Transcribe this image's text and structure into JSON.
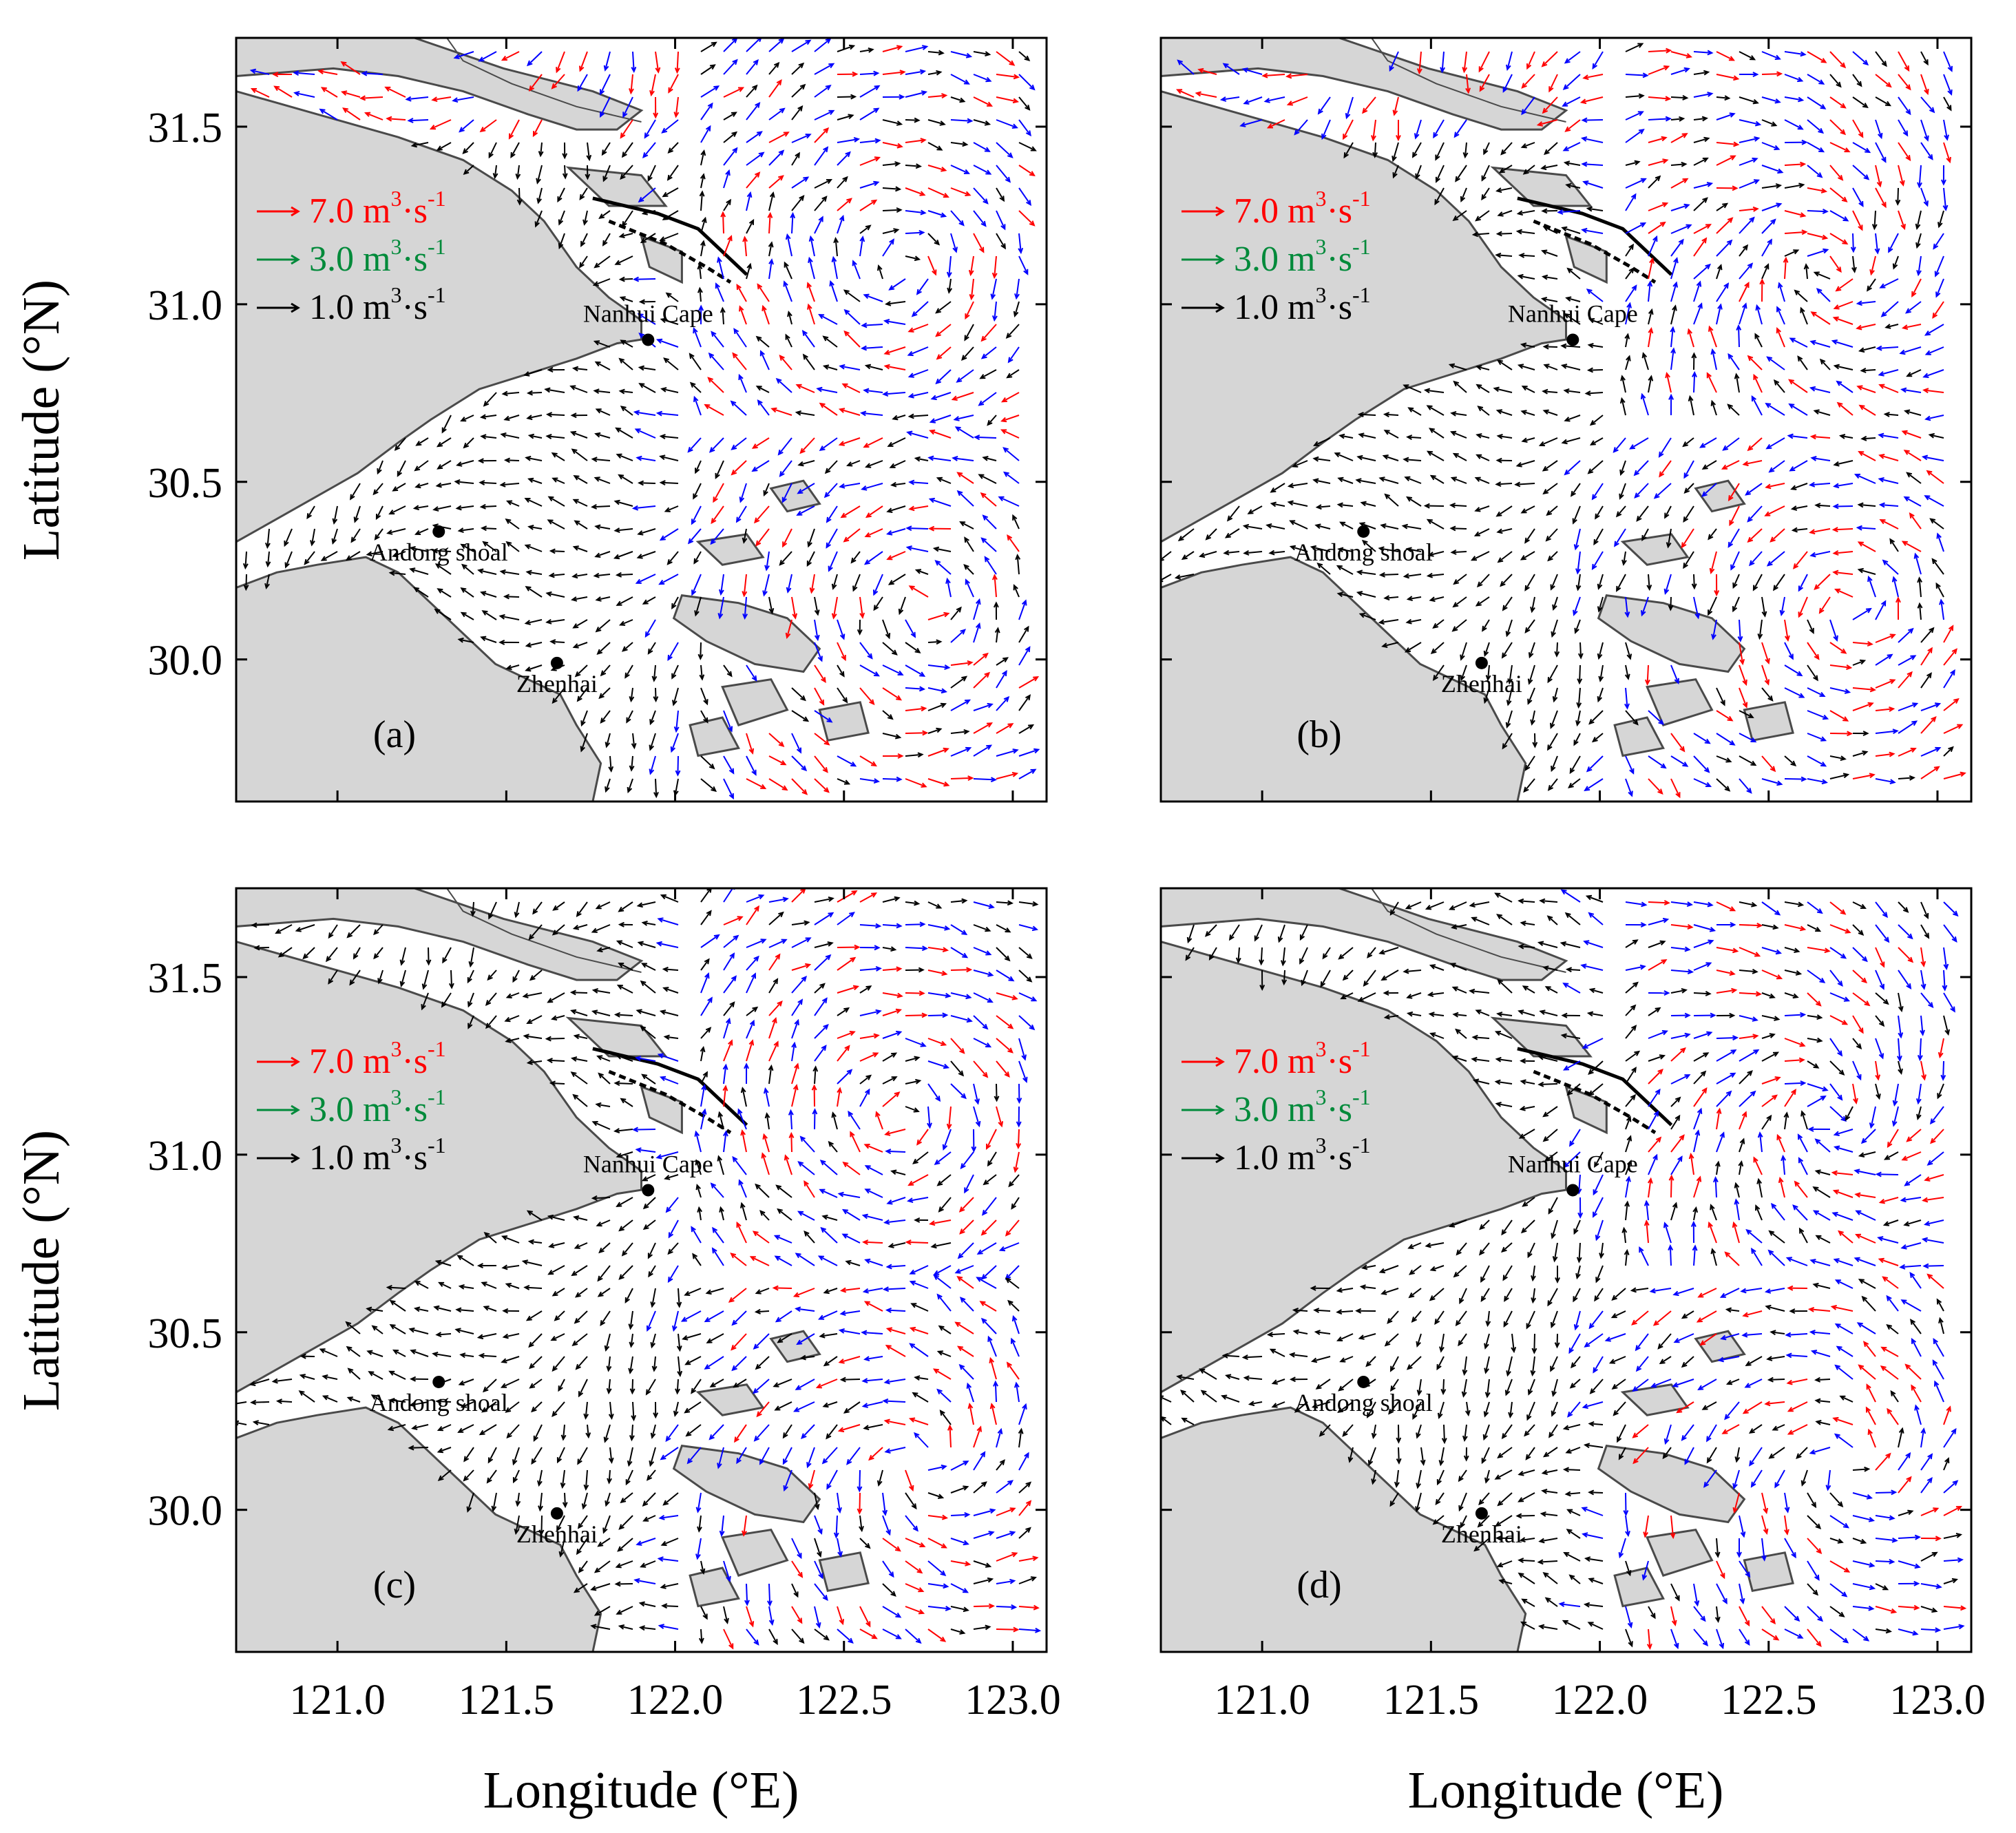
{
  "axes": {
    "xlabel": "Longitude (°E)",
    "ylabel": "Latitude (°N)",
    "xlim": [
      120.7,
      123.1
    ],
    "ylim": [
      29.6,
      31.75
    ],
    "xticks": [
      "121.0",
      "121.5",
      "122.0",
      "122.5",
      "123.0"
    ],
    "yticks": [
      "31.5",
      "31.0",
      "30.5",
      "30.0"
    ],
    "xtick_values": [
      121.0,
      121.5,
      122.0,
      122.5,
      123.0
    ],
    "ytick_values": [
      31.5,
      31.0,
      30.5,
      30.0
    ]
  },
  "legend": [
    {
      "value": "7.0",
      "unit": "m",
      "sup1": "3",
      "mid": "·s",
      "sup2": "-1",
      "color": "#ff0000"
    },
    {
      "value": "3.0",
      "unit": "m",
      "sup1": "3",
      "mid": "·s",
      "sup2": "-1",
      "color": "#008a3a"
    },
    {
      "value": "1.0",
      "unit": "m",
      "sup1": "3",
      "mid": "·s",
      "sup2": "-1",
      "color": "#000000"
    }
  ],
  "places": [
    {
      "name": "Nanhui Cape",
      "lon": 121.92,
      "lat": 30.9
    },
    {
      "name": "Andong shoal",
      "lon": 121.3,
      "lat": 30.36
    },
    {
      "name": "Zhenhai",
      "lon": 121.65,
      "lat": 29.99
    }
  ],
  "panels": [
    {
      "label": "(a)",
      "id": "a"
    },
    {
      "label": "(b)",
      "id": "b"
    },
    {
      "label": "(c)",
      "id": "c"
    },
    {
      "label": "(d)",
      "id": "d"
    }
  ],
  "colors": {
    "land": "#d6d6d6",
    "coast": "#4a4a4a",
    "arrow_large": "#ff0000",
    "arrow_mid": "#0000ff",
    "arrow_small": "#000000"
  }
}
